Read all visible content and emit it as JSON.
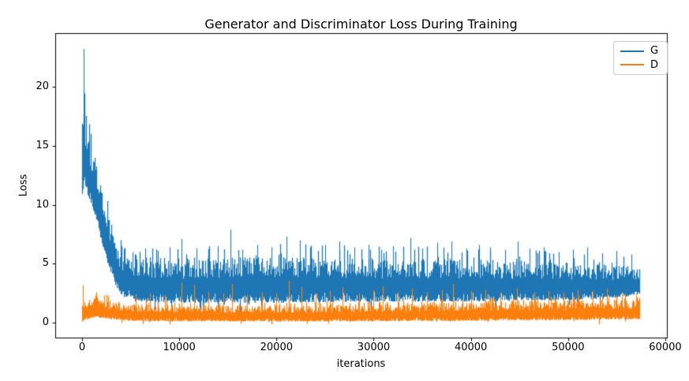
{
  "chart_data": {
    "type": "line",
    "title": "Generator and Discriminator Loss During Training",
    "xlabel": "iterations",
    "ylabel": "Loss",
    "xlim": [
      -2760,
      60163
    ],
    "ylim": [
      -1.25,
      24.55
    ],
    "xticks": [
      0,
      10000,
      20000,
      30000,
      40000,
      50000,
      60000
    ],
    "yticks": [
      0,
      5,
      10,
      15,
      20
    ],
    "grid": false,
    "legend_position": "upper right",
    "background": "#ffffff",
    "x_data_range": [
      0,
      57350
    ],
    "series": [
      {
        "name": "G",
        "color": "#1f77b4",
        "style": "dense noisy per-iteration line",
        "description": "Generator loss: starts near 17 with an initial spike to 23.2, decays rapidly until ~4000 iterations, then fluctuates around 3.5-4 (band ~1.7-5.6) with spikes to 6-8 until training ends at ~57350 iterations.",
        "trend_x": [
          0,
          250,
          500,
          1000,
          1500,
          2000,
          2500,
          3000,
          3500,
          4000,
          5000,
          7500,
          10000,
          12500,
          15000,
          17500,
          20000,
          22500,
          25000,
          27500,
          30000,
          32500,
          35000,
          37500,
          40000,
          42500,
          45000,
          47500,
          50000,
          52500,
          55000,
          57350
        ],
        "trend_y": [
          16.0,
          18.5,
          14.0,
          12.5,
          10.8,
          9.2,
          7.8,
          5.8,
          4.8,
          4.2,
          3.8,
          3.7,
          3.7,
          3.8,
          3.7,
          3.8,
          3.8,
          3.7,
          3.7,
          3.8,
          3.7,
          3.7,
          3.6,
          3.7,
          3.7,
          3.6,
          3.6,
          3.6,
          3.5,
          3.5,
          3.4,
          3.4
        ],
        "envelope": [
          [
            0,
            10.5,
            17.5
          ],
          [
            200,
            12.0,
            19.0
          ],
          [
            500,
            11.0,
            16.5
          ],
          [
            900,
            10.0,
            15.5
          ],
          [
            1300,
            9.0,
            14.5
          ],
          [
            1700,
            7.8,
            13.0
          ],
          [
            2100,
            6.5,
            11.5
          ],
          [
            2500,
            5.3,
            10.0
          ],
          [
            2900,
            4.3,
            8.6
          ],
          [
            3300,
            3.4,
            7.2
          ],
          [
            3800,
            2.6,
            6.3
          ],
          [
            4500,
            2.0,
            5.9
          ],
          [
            5500,
            1.8,
            5.7
          ],
          [
            10000,
            1.7,
            5.6
          ],
          [
            20000,
            1.7,
            5.7
          ],
          [
            30000,
            1.8,
            5.6
          ],
          [
            40000,
            1.8,
            5.5
          ],
          [
            48000,
            1.9,
            5.3
          ],
          [
            53000,
            2.0,
            5.1
          ],
          [
            56000,
            2.2,
            4.9
          ],
          [
            57350,
            2.4,
            4.6
          ]
        ],
        "spikes": [
          [
            160,
            23.2
          ],
          [
            5200,
            6.0
          ],
          [
            6500,
            6.3
          ],
          [
            7800,
            6.1
          ],
          [
            9000,
            6.4
          ],
          [
            10200,
            7.1
          ],
          [
            11800,
            6.3
          ],
          [
            13000,
            6.2
          ],
          [
            14000,
            6.5
          ],
          [
            15300,
            7.9
          ],
          [
            16500,
            6.2
          ],
          [
            18000,
            6.6
          ],
          [
            19500,
            6.4
          ],
          [
            21000,
            7.3
          ],
          [
            22400,
            7.0
          ],
          [
            23500,
            6.4
          ],
          [
            25000,
            6.6
          ],
          [
            26500,
            6.9
          ],
          [
            28000,
            6.4
          ],
          [
            29500,
            6.6
          ],
          [
            30800,
            6.2
          ],
          [
            32000,
            6.5
          ],
          [
            33800,
            7.2
          ],
          [
            35000,
            6.3
          ],
          [
            36500,
            6.8
          ],
          [
            38000,
            6.9
          ],
          [
            39500,
            6.3
          ],
          [
            40800,
            6.6
          ],
          [
            42000,
            6.4
          ],
          [
            43500,
            6.2
          ],
          [
            44800,
            6.9
          ],
          [
            46000,
            6.3
          ],
          [
            47500,
            6.4
          ],
          [
            49000,
            6.0
          ],
          [
            50500,
            6.2
          ],
          [
            52000,
            6.4
          ],
          [
            53500,
            5.9
          ],
          [
            55000,
            6.1
          ],
          [
            56500,
            5.8
          ]
        ],
        "max_value": 23.2,
        "final_value": 3.4
      },
      {
        "name": "D",
        "color": "#ff7f0e",
        "style": "dense noisy per-iteration line",
        "description": "Discriminator loss: starts near 0.8 with an early spike to ~3.2, rises to ~1.2 around 1500 iterations, then fluctuates around 0.7-1.0 (band ~0.1-1.6, widening to ~2.0 late in training) with spikes to 2.5-3.6.",
        "trend_x": [
          0,
          250,
          500,
          1000,
          1500,
          2000,
          2500,
          3000,
          3500,
          4000,
          5000,
          7500,
          10000,
          12500,
          15000,
          17500,
          20000,
          22500,
          25000,
          27500,
          30000,
          32500,
          35000,
          37500,
          40000,
          42500,
          45000,
          47500,
          50000,
          52500,
          55000,
          57350
        ],
        "trend_y": [
          0.8,
          1.0,
          1.1,
          1.2,
          1.25,
          1.2,
          1.1,
          1.0,
          0.95,
          0.9,
          0.85,
          0.8,
          0.8,
          0.75,
          0.75,
          0.75,
          0.7,
          0.7,
          0.7,
          0.7,
          0.7,
          0.72,
          0.75,
          0.75,
          0.78,
          0.8,
          0.8,
          0.85,
          0.9,
          0.95,
          1.0,
          1.05
        ],
        "envelope": [
          [
            0,
            0.1,
            1.6
          ],
          [
            400,
            0.3,
            2.0
          ],
          [
            1200,
            0.45,
            2.2
          ],
          [
            2200,
            0.4,
            2.1
          ],
          [
            3200,
            0.28,
            1.8
          ],
          [
            4500,
            0.18,
            1.65
          ],
          [
            8000,
            0.13,
            1.55
          ],
          [
            15000,
            0.12,
            1.5
          ],
          [
            25000,
            0.12,
            1.5
          ],
          [
            32000,
            0.14,
            1.6
          ],
          [
            38000,
            0.16,
            1.75
          ],
          [
            45000,
            0.2,
            1.85
          ],
          [
            52000,
            0.25,
            1.95
          ],
          [
            57350,
            0.3,
            2.0
          ]
        ],
        "spikes": [
          [
            120,
            3.2
          ],
          [
            1500,
            2.6
          ],
          [
            2500,
            2.4
          ],
          [
            5500,
            2.3
          ],
          [
            7000,
            2.5
          ],
          [
            8500,
            2.4
          ],
          [
            10200,
            3.4
          ],
          [
            11500,
            3.2
          ],
          [
            13000,
            2.6
          ],
          [
            14500,
            2.5
          ],
          [
            15400,
            3.3
          ],
          [
            17000,
            2.4
          ],
          [
            18500,
            2.6
          ],
          [
            20000,
            2.5
          ],
          [
            21300,
            3.6
          ],
          [
            22600,
            3.0
          ],
          [
            24000,
            2.5
          ],
          [
            25500,
            2.7
          ],
          [
            26800,
            3.0
          ],
          [
            28500,
            2.5
          ],
          [
            30000,
            2.8
          ],
          [
            30900,
            3.1
          ],
          [
            32500,
            2.6
          ],
          [
            33900,
            2.9
          ],
          [
            35500,
            2.6
          ],
          [
            37000,
            2.8
          ],
          [
            38200,
            3.3
          ],
          [
            40000,
            2.7
          ],
          [
            41500,
            2.8
          ],
          [
            43000,
            2.6
          ],
          [
            44700,
            2.9
          ],
          [
            46500,
            2.6
          ],
          [
            48000,
            2.7
          ],
          [
            49500,
            2.6
          ],
          [
            51000,
            2.8
          ],
          [
            52500,
            2.7
          ],
          [
            54000,
            2.9
          ],
          [
            55500,
            2.6
          ],
          [
            57000,
            2.5
          ]
        ],
        "max_value": 3.6,
        "final_value": 1.05
      }
    ]
  }
}
